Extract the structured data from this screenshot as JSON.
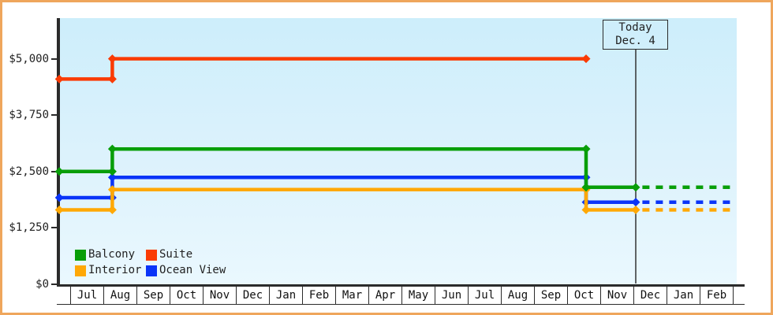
{
  "chart_data": {
    "type": "line",
    "title": "",
    "description": "Cabin price history by month with stepped lines, today marker and dashed future projection",
    "x_axis": {
      "labels": [
        "Jul",
        "Aug",
        "Sep",
        "Oct",
        "Nov",
        "Dec",
        "Jan",
        "Feb",
        "Mar",
        "Apr",
        "May",
        "Jun",
        "Jul",
        "Aug",
        "Sep",
        "Oct",
        "Nov",
        "Dec",
        "Jan",
        "Feb"
      ],
      "unit": "month",
      "domain_note": "x values are month units where 0 = start of first Jul cell"
    },
    "y_axis": {
      "tick_values": [
        0,
        1250,
        2500,
        3750,
        5000
      ],
      "tick_labels": [
        "$0",
        "$1,250",
        "$2,500",
        "$3,750",
        "$5,000"
      ],
      "ylim": [
        0,
        5900
      ],
      "grid": false
    },
    "today": {
      "label_line1": "Today",
      "label_line2": "Dec. 4",
      "x": 17.0
    },
    "legend_position": "bottom-left",
    "series": [
      {
        "name": "Balcony",
        "color": "#089e08",
        "points": [
          [
            -0.4,
            2500
          ],
          [
            1.2,
            2500
          ],
          [
            1.2,
            3000
          ],
          [
            15.5,
            3000
          ],
          [
            15.5,
            2150
          ],
          [
            17.0,
            2150
          ]
        ],
        "projection": [
          [
            17.2,
            2150
          ],
          [
            20.0,
            2150
          ]
        ]
      },
      {
        "name": "Suite",
        "color": "#fa3b05",
        "points": [
          [
            -0.4,
            4550
          ],
          [
            1.2,
            4550
          ],
          [
            1.2,
            5000
          ],
          [
            15.5,
            5000
          ]
        ],
        "projection": []
      },
      {
        "name": "Interior",
        "color": "#ffa805",
        "points": [
          [
            -0.4,
            1650
          ],
          [
            1.2,
            1650
          ],
          [
            1.2,
            2100
          ],
          [
            15.5,
            2100
          ],
          [
            15.5,
            1650
          ],
          [
            17.0,
            1650
          ]
        ],
        "projection": [
          [
            17.2,
            1650
          ],
          [
            20.0,
            1650
          ]
        ]
      },
      {
        "name": "Ocean View",
        "color": "#0a34f8",
        "points": [
          [
            -0.4,
            1920
          ],
          [
            1.2,
            1920
          ],
          [
            1.2,
            2370
          ],
          [
            15.5,
            2370
          ],
          [
            15.5,
            1820
          ],
          [
            17.0,
            1820
          ]
        ],
        "projection": [
          [
            17.2,
            1820
          ],
          [
            20.0,
            1820
          ]
        ]
      }
    ],
    "colors": {
      "plot_bg_top": "#cdeefb",
      "plot_bg_bottom": "#eaf8fe",
      "axis": "#2b2b2b",
      "frame_border": "#efa65c",
      "today_line": "#333333"
    }
  }
}
